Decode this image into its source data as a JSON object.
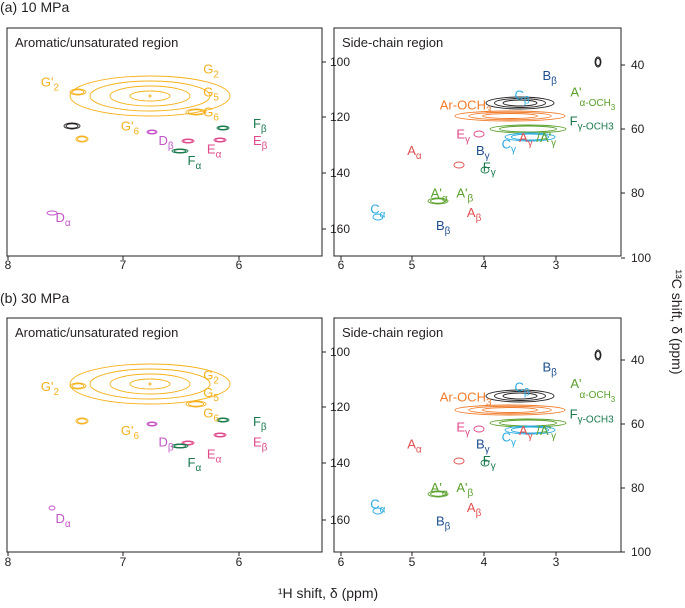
{
  "chart_data": {
    "type": "nmr-2d-contour",
    "panels": [
      {
        "label": "(a) 10 MPa",
        "subplots": [
          {
            "title": "Aromatic/unsaturated region",
            "xlim": [
              8,
              5.4
            ],
            "ylim": [
              170,
              90
            ],
            "xticks": [
              "8",
              "7",
              "6"
            ],
            "yticks": [
              "100",
              "120",
              "140",
              "160"
            ],
            "peaks": [
              {
                "text": "G'",
                "sub": "2",
                "x": 7.72,
                "y": 110.5,
                "color": "#f5b11b"
              },
              {
                "text": "G",
                "sub": "2",
                "x": 6.38,
                "y": 106,
                "color": "#f5b11b"
              },
              {
                "text": "G",
                "sub": "5",
                "x": 6.38,
                "y": 114,
                "color": "#f5b11b"
              },
              {
                "text": "G",
                "sub": "6",
                "x": 6.38,
                "y": 121,
                "color": "#f5b11b"
              },
              {
                "text": "G'",
                "sub": "6",
                "x": 7.06,
                "y": 126,
                "color": "#f5b11b"
              },
              {
                "text": "D",
                "sub": "β",
                "x": 6.75,
                "y": 131,
                "color": "#c355c8"
              },
              {
                "text": "F",
                "sub": "β",
                "x": 5.97,
                "y": 125,
                "color": "#1a7a4c"
              },
              {
                "text": "F",
                "sub": "α",
                "x": 6.51,
                "y": 138,
                "color": "#1a7a4c"
              },
              {
                "text": "E",
                "sub": "α",
                "x": 6.35,
                "y": 134,
                "color": "#e04a8c"
              },
              {
                "text": "E",
                "sub": "β",
                "x": 5.97,
                "y": 131,
                "color": "#e04a8c"
              },
              {
                "text": "D",
                "sub": "α",
                "x": 7.6,
                "y": 158,
                "color": "#c355c8"
              }
            ]
          },
          {
            "title": "Side-chain region",
            "xlim": [
              6,
              2.2
            ],
            "ylim": [
              100,
              30
            ],
            "xticks": [
              "6",
              "5",
              "4",
              "3"
            ],
            "yticks": [
              "40",
              "60",
              "80",
              "100"
            ],
            "peaks": [
              {
                "text": "B",
                "sub": "β",
                "x": 3.24,
                "y": 46,
                "color": "#1f4f8f"
              },
              {
                "text": "A'",
                "sub": "",
                "x": 2.87,
                "y": 51,
                "color": "#5aa02c"
              },
              {
                "text": "α-OCH",
                "sub": "3",
                "x": 2.75,
                "y": 54,
                "color": "#5aa02c",
                "small": true
              },
              {
                "text": "C",
                "sub": "β",
                "x": 3.61,
                "y": 52,
                "color": "#29abe2"
              },
              {
                "text": "Ar-OCH",
                "sub": "3",
                "x": 4.6,
                "y": 55,
                "color": "#f07c2c"
              },
              {
                "text": "F",
                "sub": "γ-OCH3",
                "x": 2.88,
                "y": 60,
                "color": "#1a7a4c"
              },
              {
                "text": "E",
                "sub": "γ",
                "x": 4.38,
                "y": 64,
                "color": "#e04a8c"
              },
              {
                "text": "C",
                "sub": "γ",
                "x": 3.78,
                "y": 67,
                "color": "#29abe2"
              },
              {
                "text": "A",
                "sub": "γ",
                "x": 3.55,
                "y": 65,
                "color": "#e05050"
              },
              {
                "text": "/A'",
                "sub": "γ",
                "x": 3.32,
                "y": 65,
                "color": "#5aa02c"
              },
              {
                "text": "B",
                "sub": "γ",
                "x": 4.12,
                "y": 69,
                "color": "#1f4f8f"
              },
              {
                "text": "A",
                "sub": "α",
                "x": 5.03,
                "y": 69,
                "color": "#e05050"
              },
              {
                "text": "F",
                "sub": "γ",
                "x": 4.03,
                "y": 74,
                "color": "#1a7a4c"
              },
              {
                "text": "A'",
                "sub": "α",
                "x": 4.72,
                "y": 82,
                "color": "#5aa02c"
              },
              {
                "text": "A'",
                "sub": "β",
                "x": 4.38,
                "y": 82,
                "color": "#5aa02c"
              },
              {
                "text": "A",
                "sub": "β",
                "x": 4.24,
                "y": 88,
                "color": "#e05050"
              },
              {
                "text": "C",
                "sub": "α",
                "x": 5.52,
                "y": 87,
                "color": "#29abe2"
              },
              {
                "text": "B",
                "sub": "β",
                "x": 4.65,
                "y": 92,
                "color": "#1f4f8f"
              }
            ]
          }
        ]
      },
      {
        "label": "(b) 30 MPa",
        "subplots": [
          {
            "title": "Aromatic/unsaturated region",
            "xlim": [
              8,
              5.4
            ],
            "ylim": [
              170,
              90
            ],
            "xticks": [
              "8",
              "7",
              "6"
            ],
            "yticks": [
              "100",
              "120",
              "140",
              "160"
            ],
            "peaks": [
              {
                "text": "G'",
                "sub": "2",
                "x": 7.72,
                "y": 115,
                "color": "#f5b11b"
              },
              {
                "text": "G",
                "sub": "2",
                "x": 6.38,
                "y": 111,
                "color": "#f5b11b"
              },
              {
                "text": "G",
                "sub": "5",
                "x": 6.38,
                "y": 117,
                "color": "#f5b11b"
              },
              {
                "text": "G",
                "sub": "6",
                "x": 6.38,
                "y": 124,
                "color": "#f5b11b"
              },
              {
                "text": "G'",
                "sub": "6",
                "x": 7.06,
                "y": 130,
                "color": "#f5b11b"
              },
              {
                "text": "D",
                "sub": "β",
                "x": 6.75,
                "y": 134,
                "color": "#c355c8"
              },
              {
                "text": "F",
                "sub": "β",
                "x": 5.97,
                "y": 127,
                "color": "#1a7a4c"
              },
              {
                "text": "F",
                "sub": "α",
                "x": 6.51,
                "y": 141,
                "color": "#1a7a4c"
              },
              {
                "text": "E",
                "sub": "α",
                "x": 6.35,
                "y": 138,
                "color": "#e04a8c"
              },
              {
                "text": "E",
                "sub": "β",
                "x": 5.97,
                "y": 134,
                "color": "#e04a8c"
              },
              {
                "text": "D",
                "sub": "α",
                "x": 7.6,
                "y": 160,
                "color": "#c355c8"
              }
            ]
          },
          {
            "title": "Side-chain region",
            "xlim": [
              6,
              2.2
            ],
            "ylim": [
              100,
              30
            ],
            "xticks": [
              "6",
              "5",
              "4",
              "3"
            ],
            "yticks": [
              "40",
              "60",
              "80",
              "100"
            ],
            "peaks": [
              {
                "text": "B",
                "sub": "β",
                "x": 3.24,
                "y": 46,
                "color": "#1f4f8f"
              },
              {
                "text": "A'",
                "sub": "",
                "x": 2.87,
                "y": 51,
                "color": "#5aa02c"
              },
              {
                "text": "α-OCH",
                "sub": "3",
                "x": 2.75,
                "y": 54,
                "color": "#5aa02c",
                "small": true
              },
              {
                "text": "C",
                "sub": "β",
                "x": 3.61,
                "y": 52,
                "color": "#29abe2"
              },
              {
                "text": "Ar-OCH",
                "sub": "3",
                "x": 4.6,
                "y": 55,
                "color": "#f07c2c"
              },
              {
                "text": "F",
                "sub": "γ-OCH3",
                "x": 2.88,
                "y": 60,
                "color": "#1a7a4c"
              },
              {
                "text": "E",
                "sub": "γ",
                "x": 4.38,
                "y": 64,
                "color": "#e04a8c"
              },
              {
                "text": "C",
                "sub": "γ",
                "x": 3.78,
                "y": 67,
                "color": "#29abe2"
              },
              {
                "text": "A",
                "sub": "γ",
                "x": 3.55,
                "y": 65,
                "color": "#e05050"
              },
              {
                "text": "/A'",
                "sub": "γ",
                "x": 3.32,
                "y": 65,
                "color": "#5aa02c"
              },
              {
                "text": "B",
                "sub": "γ",
                "x": 4.12,
                "y": 69,
                "color": "#1f4f8f"
              },
              {
                "text": "A",
                "sub": "α",
                "x": 5.03,
                "y": 69,
                "color": "#e05050"
              },
              {
                "text": "F",
                "sub": "γ",
                "x": 4.03,
                "y": 74,
                "color": "#1a7a4c"
              },
              {
                "text": "A'",
                "sub": "α",
                "x": 4.72,
                "y": 82,
                "color": "#5aa02c"
              },
              {
                "text": "A'",
                "sub": "β",
                "x": 4.38,
                "y": 82,
                "color": "#5aa02c"
              },
              {
                "text": "A",
                "sub": "β",
                "x": 4.24,
                "y": 88,
                "color": "#e05050"
              },
              {
                "text": "C",
                "sub": "α",
                "x": 5.52,
                "y": 87,
                "color": "#29abe2"
              },
              {
                "text": "B",
                "sub": "β",
                "x": 4.65,
                "y": 92,
                "color": "#1f4f8f"
              }
            ]
          }
        ]
      }
    ],
    "xlabel": "¹H shift, δ (ppm)",
    "ylabel": "¹³C shift, δ (ppm)"
  }
}
